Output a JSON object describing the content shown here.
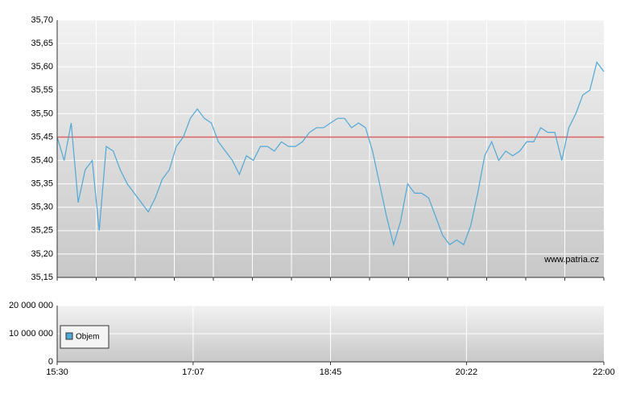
{
  "chart_data": [
    {
      "type": "line",
      "x": [
        "15:30",
        "15:35",
        "15:40",
        "15:45",
        "15:50",
        "15:55",
        "16:00",
        "16:05",
        "16:10",
        "16:15",
        "16:20",
        "16:25",
        "16:30",
        "16:35",
        "16:40",
        "16:45",
        "16:50",
        "16:55",
        "17:00",
        "17:05",
        "17:10",
        "17:15",
        "17:20",
        "17:25",
        "17:30",
        "17:35",
        "17:40",
        "17:45",
        "17:50",
        "17:55",
        "18:00",
        "18:05",
        "18:10",
        "18:15",
        "18:20",
        "18:25",
        "18:30",
        "18:35",
        "18:40",
        "18:45",
        "18:50",
        "18:55",
        "19:00",
        "19:05",
        "19:10",
        "19:15",
        "19:20",
        "19:25",
        "19:30",
        "19:35",
        "19:40",
        "19:45",
        "19:50",
        "19:55",
        "20:00",
        "20:05",
        "20:10",
        "20:15",
        "20:20",
        "20:25",
        "20:30",
        "20:35",
        "20:40",
        "20:45",
        "20:50",
        "20:55",
        "21:00",
        "21:05",
        "21:10",
        "21:15",
        "21:20",
        "21:25",
        "21:30",
        "21:35",
        "21:40",
        "21:45",
        "21:50",
        "21:55",
        "22:00"
      ],
      "series": [
        {
          "color": "#4fa8d6",
          "values": [
            35.45,
            35.4,
            35.48,
            35.31,
            35.38,
            35.4,
            35.25,
            35.43,
            35.42,
            35.38,
            35.35,
            35.33,
            35.31,
            35.29,
            35.32,
            35.36,
            35.38,
            35.43,
            35.45,
            35.49,
            35.51,
            35.49,
            35.48,
            35.44,
            35.42,
            35.4,
            35.37,
            35.41,
            35.4,
            35.43,
            35.43,
            35.42,
            35.44,
            35.43,
            35.43,
            35.44,
            35.46,
            35.47,
            35.47,
            35.48,
            35.49,
            35.49,
            35.47,
            35.48,
            35.47,
            35.42,
            35.35,
            35.28,
            35.22,
            35.27,
            35.35,
            35.33,
            35.33,
            35.32,
            35.28,
            35.24,
            35.22,
            35.23,
            35.22,
            35.26,
            35.33,
            35.41,
            35.44,
            35.4,
            35.42,
            35.41,
            35.42,
            35.44,
            35.44,
            35.47,
            35.46,
            35.46,
            35.4,
            35.47,
            35.5,
            35.54,
            35.55,
            35.61,
            35.59
          ]
        }
      ],
      "reference_line": {
        "value": 35.45,
        "color": "#e06060"
      },
      "ylim": [
        35.15,
        35.7
      ],
      "yticks": [
        {
          "value": 35.15,
          "label": "35,15"
        },
        {
          "value": 35.2,
          "label": "35,20"
        },
        {
          "value": 35.25,
          "label": "35,25"
        },
        {
          "value": 35.3,
          "label": "35,30"
        },
        {
          "value": 35.35,
          "label": "35,35"
        },
        {
          "value": 35.4,
          "label": "35,40"
        },
        {
          "value": 35.45,
          "label": "35,45"
        },
        {
          "value": 35.5,
          "label": "35,50"
        },
        {
          "value": 35.55,
          "label": "35,55"
        },
        {
          "value": 35.6,
          "label": "35,60"
        },
        {
          "value": 35.65,
          "label": "35,65"
        },
        {
          "value": 35.7,
          "label": "35,70"
        }
      ],
      "annotation": "www.patria.cz",
      "grid": true
    },
    {
      "type": "bar",
      "series": [
        {
          "name": "Objem",
          "color": "#4fa8d6"
        }
      ],
      "xlim": [
        "15:30",
        "22:00"
      ],
      "xticks": [
        "15:30",
        "17:07",
        "18:45",
        "20:22",
        "22:00"
      ],
      "ylim": [
        0,
        20000000
      ],
      "yticks": [
        0,
        {
          "value": 10000000,
          "label": "10 000 000"
        },
        {
          "value": 20000000,
          "label": "20 000 000"
        }
      ],
      "legend": "bottom-left",
      "grid": true
    }
  ]
}
